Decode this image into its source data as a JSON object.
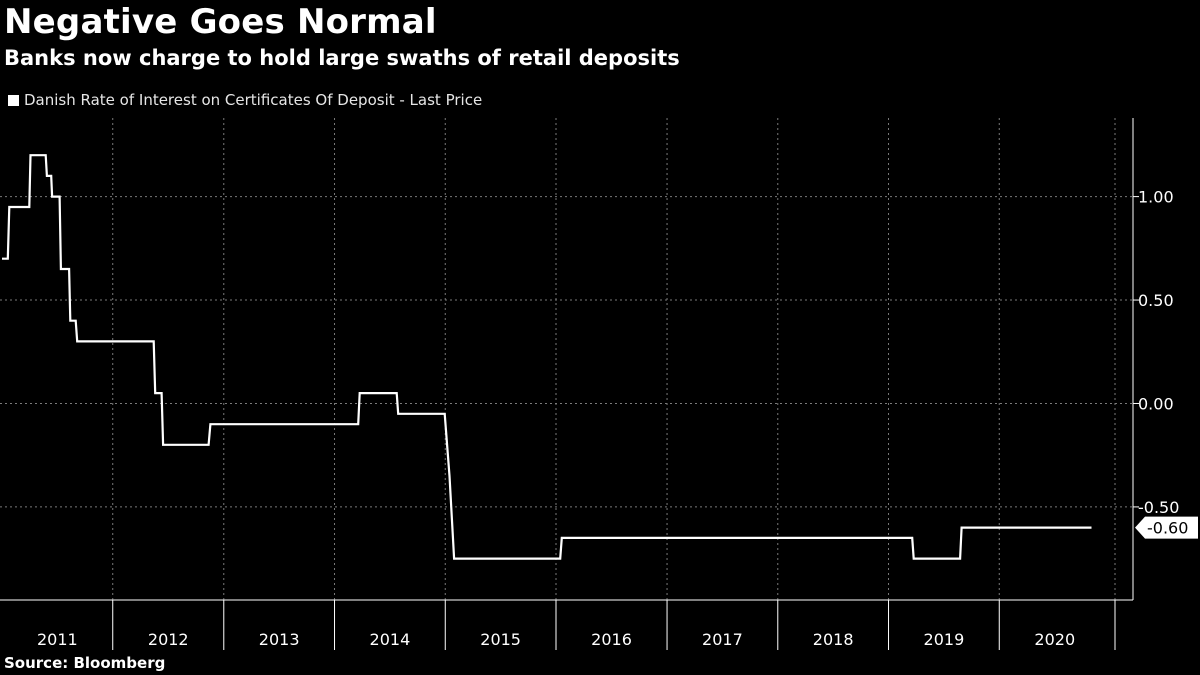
{
  "header": {
    "title": "Negative Goes Normal",
    "subtitle": "Banks now charge to hold large swaths of retail deposits"
  },
  "legend": {
    "label": "Danish Rate of Interest on Certificates Of Deposit - Last Price"
  },
  "footer": {
    "source": "Source:  Bloomberg"
  },
  "colors": {
    "background": "#000000",
    "line": "#ffffff",
    "grid": "#7a7a7a"
  },
  "chart_data": {
    "type": "line",
    "title": "Negative Goes Normal",
    "subtitle": "Banks now charge to hold large swaths of retail deposits",
    "xlabel": "",
    "ylabel": "",
    "xlim": [
      "2011-01-01",
      "2020-12-31"
    ],
    "ylim": [
      -0.95,
      1.38
    ],
    "y_ticks": [
      1.0,
      0.5,
      0.0,
      -0.5
    ],
    "y_tick_labels": [
      "1.00",
      "0.50",
      "0.00",
      "-0.50"
    ],
    "x_tick_labels": [
      "2011",
      "2012",
      "2013",
      "2014",
      "2015",
      "2016",
      "2017",
      "2018",
      "2019",
      "2020"
    ],
    "y_axis_side": "right",
    "grid": true,
    "legend_position": "top-left",
    "last_value_label": "-0.60",
    "series": [
      {
        "name": "Danish Rate of Interest on Certificates Of Deposit - Last Price",
        "x": [
          "2011-01-01",
          "2011-01-20",
          "2011-01-25",
          "2011-04-01",
          "2011-04-05",
          "2011-05-25",
          "2011-05-29",
          "2011-06-12",
          "2011-06-15",
          "2011-07-10",
          "2011-07-14",
          "2011-08-10",
          "2011-08-14",
          "2011-09-01",
          "2011-09-06",
          "2011-09-20",
          "2011-10-05",
          "2012-05-15",
          "2012-05-20",
          "2012-06-10",
          "2012-06-15",
          "2012-11-12",
          "2012-11-18",
          "2014-03-20",
          "2014-03-25",
          "2014-07-25",
          "2014-07-30",
          "2014-12-30",
          "2015-01-15",
          "2015-01-30",
          "2015-02-15",
          "2016-01-15",
          "2016-01-20",
          "2019-03-20",
          "2019-03-25",
          "2019-08-25",
          "2019-08-30",
          "2020-10-31"
        ],
        "y": [
          0.7,
          0.7,
          0.95,
          0.95,
          1.2,
          1.2,
          1.1,
          1.1,
          1.0,
          1.0,
          0.65,
          0.65,
          0.4,
          0.4,
          0.3,
          0.3,
          0.3,
          0.3,
          0.05,
          0.05,
          -0.2,
          -0.2,
          -0.1,
          -0.1,
          0.05,
          0.05,
          -0.05,
          -0.05,
          -0.35,
          -0.75,
          -0.75,
          -0.75,
          -0.65,
          -0.65,
          -0.75,
          -0.75,
          -0.6,
          -0.6
        ]
      }
    ]
  }
}
